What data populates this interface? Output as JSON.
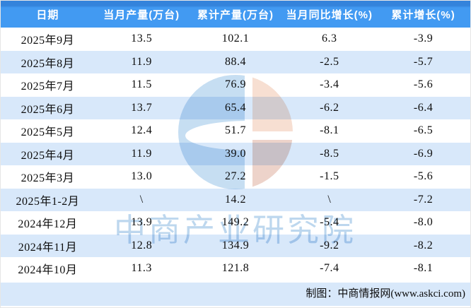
{
  "chart_data": {
    "type": "table",
    "columns": [
      "日期",
      "当月产量(万台)",
      "累计产量(万台)",
      "当月同比增长(%)",
      "累计增长(%)"
    ],
    "rows": [
      [
        "2025年9月",
        "13.5",
        "102.1",
        "6.3",
        "-3.9"
      ],
      [
        "2025年8月",
        "11.9",
        "88.4",
        "-2.5",
        "-5.7"
      ],
      [
        "2025年7月",
        "11.5",
        "76.9",
        "-3.4",
        "-5.6"
      ],
      [
        "2025年6月",
        "13.7",
        "65.4",
        "-6.2",
        "-6.4"
      ],
      [
        "2025年5月",
        "12.4",
        "51.7",
        "-8.1",
        "-6.5"
      ],
      [
        "2025年4月",
        "11.9",
        "39.0",
        "-8.5",
        "-6.9"
      ],
      [
        "2025年3月",
        "13.0",
        "27.2",
        "-1.5",
        "-5.6"
      ],
      [
        "2025年1-2月",
        "\\",
        "14.2",
        "\\",
        "-7.2"
      ],
      [
        "2024年12月",
        "13.9",
        "149.2",
        "-5.4",
        "-8.0"
      ],
      [
        "2024年11月",
        "12.8",
        "134.9",
        "-9.2",
        "-8.2"
      ],
      [
        "2024年10月",
        "11.3",
        "121.8",
        "-7.4",
        "-8.1"
      ]
    ]
  },
  "watermark": {
    "text": "中商产业研究院"
  },
  "footer": {
    "credit": "制图：中商情报网(www.askci.com)"
  },
  "colors": {
    "header_blue": "#429AF2",
    "header_blue_dark": "#3483DB",
    "row_alt_blue": "#D8E8FA",
    "footer_bg": "#D8E8FA",
    "watermark_logo_blue": "#C6DEF2",
    "watermark_logo_salmon_top": "#F7DFD2",
    "watermark_logo_salmon_bottom": "#EDD3CA",
    "watermark_text_blue": "#BDD7EE"
  }
}
